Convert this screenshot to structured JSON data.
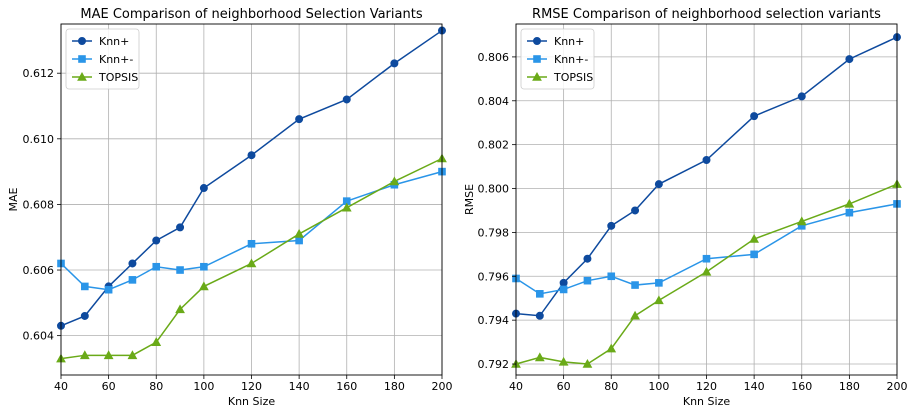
{
  "chart_data": [
    {
      "type": "line",
      "title": "MAE Comparison of neighborhood Selection Variants",
      "xlabel": "Knn Size",
      "ylabel": "MAE",
      "xlim": [
        40,
        200
      ],
      "ylim": [
        0.6028,
        0.6135
      ],
      "xticks": [
        40,
        60,
        80,
        100,
        120,
        140,
        160,
        180,
        200
      ],
      "yticks": [
        0.604,
        0.606,
        0.608,
        0.61,
        0.612
      ],
      "ytick_labels": [
        "0.604",
        "0.606",
        "0.608",
        "0.610",
        "0.612"
      ],
      "grid": true,
      "legend_position": "top-left",
      "x": [
        40,
        50,
        60,
        70,
        80,
        90,
        100,
        120,
        140,
        160,
        180,
        200
      ],
      "series": [
        {
          "name": "Knn+",
          "marker": "circle",
          "color": "#0e4a9e",
          "values": [
            0.6043,
            0.6046,
            0.6055,
            0.6062,
            0.6069,
            0.6073,
            0.6085,
            0.6095,
            0.6106,
            0.6112,
            0.6123,
            0.6133
          ]
        },
        {
          "name": "Knn+-",
          "marker": "square",
          "color": "#2a95e8",
          "values": [
            0.6062,
            0.6055,
            0.6054,
            0.6057,
            0.6061,
            0.606,
            0.6061,
            0.6068,
            0.6069,
            0.6081,
            0.6086,
            0.609
          ]
        },
        {
          "name": "TOPSIS",
          "marker": "triangle",
          "color": "#6aaa18",
          "values": [
            0.6033,
            0.6034,
            0.6034,
            0.6034,
            0.6038,
            0.6048,
            0.6055,
            0.6062,
            0.6071,
            0.6079,
            0.6087,
            0.6094
          ]
        }
      ]
    },
    {
      "type": "line",
      "title": "RMSE Comparison of neighborhood selection variants",
      "xlabel": "Knn Size",
      "ylabel": "RMSE",
      "xlim": [
        40,
        200
      ],
      "ylim": [
        0.7915,
        0.8075
      ],
      "xticks": [
        40,
        60,
        80,
        100,
        120,
        140,
        160,
        180,
        200
      ],
      "yticks": [
        0.792,
        0.794,
        0.796,
        0.798,
        0.8,
        0.802,
        0.804,
        0.806
      ],
      "ytick_labels": [
        "0.792",
        "0.794",
        "0.796",
        "0.798",
        "0.800",
        "0.802",
        "0.804",
        "0.806"
      ],
      "grid": true,
      "legend_position": "top-left",
      "x": [
        40,
        50,
        60,
        70,
        80,
        90,
        100,
        120,
        140,
        160,
        180,
        200
      ],
      "series": [
        {
          "name": "Knn+",
          "marker": "circle",
          "color": "#0e4a9e",
          "values": [
            0.7943,
            0.7942,
            0.7957,
            0.7968,
            0.7983,
            0.799,
            0.8002,
            0.8013,
            0.8033,
            0.8042,
            0.8059,
            0.8069
          ]
        },
        {
          "name": "Knn+-",
          "marker": "square",
          "color": "#2a95e8",
          "values": [
            0.7959,
            0.7952,
            0.7954,
            0.7958,
            0.796,
            0.7956,
            0.7957,
            0.7968,
            0.797,
            0.7983,
            0.7989,
            0.7993
          ]
        },
        {
          "name": "TOPSIS",
          "marker": "triangle",
          "color": "#6aaa18",
          "values": [
            0.792,
            0.7923,
            0.7921,
            0.792,
            0.7927,
            0.7942,
            0.7949,
            0.7962,
            0.7977,
            0.7985,
            0.7993,
            0.8002
          ]
        }
      ]
    }
  ]
}
